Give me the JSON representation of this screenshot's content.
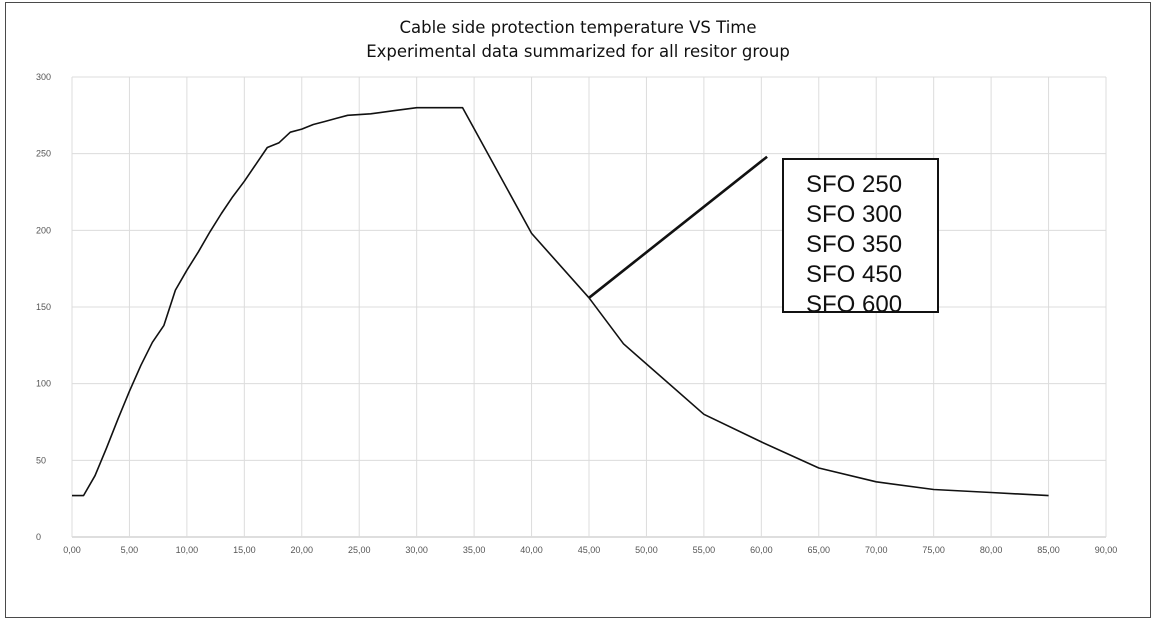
{
  "chart_data": {
    "type": "line",
    "title": "Cable side protection temperature VS Time",
    "subtitle": "Experimental data summarized for all resitor group",
    "xlabel": "",
    "ylabel": "",
    "xlim": [
      0,
      90
    ],
    "ylim": [
      0,
      300
    ],
    "x_ticks": [
      "0,00",
      "5,00",
      "10,00",
      "15,00",
      "20,00",
      "25,00",
      "30,00",
      "35,00",
      "40,00",
      "45,00",
      "50,00",
      "55,00",
      "60,00",
      "65,00",
      "70,00",
      "75,00",
      "80,00",
      "85,00",
      "90,00"
    ],
    "y_ticks": [
      "0",
      "50",
      "100",
      "150",
      "200",
      "250",
      "300"
    ],
    "grid": true,
    "series": [
      {
        "x": [
          0,
          1,
          2,
          3,
          4,
          5,
          6,
          7,
          8,
          9,
          10,
          11,
          12,
          13,
          14,
          15,
          16,
          17,
          18,
          19,
          20,
          21,
          22,
          23,
          24,
          26,
          28,
          30,
          34,
          40,
          45,
          48,
          55,
          60,
          65,
          70,
          75,
          80,
          85
        ],
        "y": [
          27,
          27,
          40,
          58,
          77,
          95,
          112,
          127,
          138,
          161,
          174,
          186,
          199,
          211,
          222,
          232,
          243,
          254,
          257,
          264,
          266,
          269,
          271,
          273,
          275,
          276,
          278,
          280,
          280,
          198,
          156,
          126,
          80,
          62,
          45,
          36,
          31,
          29,
          27
        ]
      }
    ],
    "annotation": {
      "labels": [
        "SFO 250",
        "SFO 300",
        "SFO 350",
        "SFO 450",
        "SFO 600"
      ],
      "from": [
        45,
        156
      ],
      "to": [
        60.5,
        248
      ]
    }
  }
}
